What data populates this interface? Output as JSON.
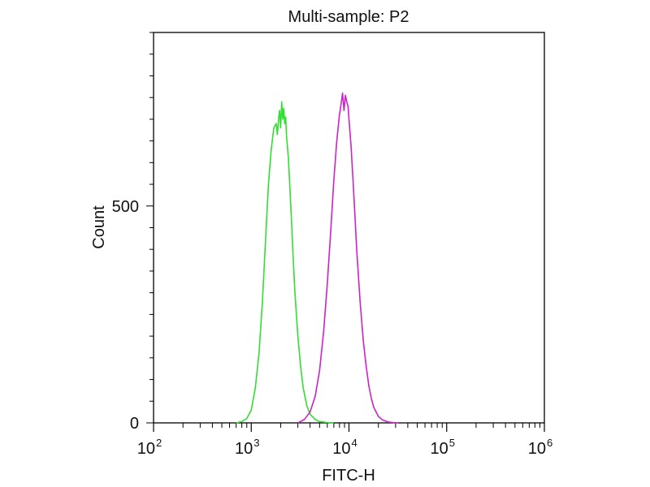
{
  "chart_data": {
    "type": "line",
    "title": "Multi-sample: P2",
    "xlabel": "FITC-H",
    "ylabel": "Count",
    "x_scale": "log",
    "xlim": [
      100,
      1000000
    ],
    "ylim": [
      0,
      900
    ],
    "x_ticks": [
      {
        "base": "10",
        "exp": "2",
        "value": 100
      },
      {
        "base": "10",
        "exp": "3",
        "value": 1000
      },
      {
        "base": "10",
        "exp": "4",
        "value": 10000
      },
      {
        "base": "10",
        "exp": "5",
        "value": 100000
      },
      {
        "base": "10",
        "exp": "6",
        "value": 1000000
      }
    ],
    "y_ticks": [
      {
        "label": "0",
        "value": 0
      },
      {
        "label": "500",
        "value": 500
      }
    ],
    "grid": false,
    "legend": "none",
    "series": [
      {
        "color": "#33dd33",
        "x": [
          700,
          800,
          900,
          1000,
          1100,
          1200,
          1300,
          1400,
          1500,
          1600,
          1700,
          1800,
          1850,
          1900,
          1950,
          2000,
          2050,
          2100,
          2150,
          2200,
          2250,
          2300,
          2400,
          2500,
          2600,
          2700,
          2800,
          3000,
          3200,
          3400,
          3700,
          4000,
          4500,
          5000,
          6000,
          7000
        ],
        "y": [
          0,
          3,
          10,
          30,
          80,
          160,
          280,
          420,
          550,
          630,
          680,
          690,
          665,
          700,
          720,
          680,
          740,
          700,
          725,
          690,
          705,
          660,
          610,
          530,
          450,
          370,
          300,
          200,
          130,
          80,
          40,
          20,
          8,
          3,
          1,
          0
        ]
      },
      {
        "color": "#cc22cc",
        "x": [
          3000,
          3500,
          4000,
          4500,
          5000,
          5500,
          6000,
          6500,
          7000,
          7500,
          8000,
          8300,
          8600,
          8900,
          9200,
          9500,
          9800,
          10000,
          10500,
          11000,
          11500,
          12000,
          13000,
          14000,
          15000,
          16000,
          17000,
          18000,
          20000,
          22000,
          25000,
          28000,
          32000
        ],
        "y": [
          0,
          8,
          25,
          60,
          120,
          210,
          320,
          440,
          560,
          650,
          710,
          735,
          760,
          720,
          755,
          740,
          730,
          700,
          640,
          560,
          480,
          400,
          280,
          190,
          130,
          85,
          55,
          35,
          15,
          7,
          2,
          1,
          0
        ]
      }
    ]
  }
}
